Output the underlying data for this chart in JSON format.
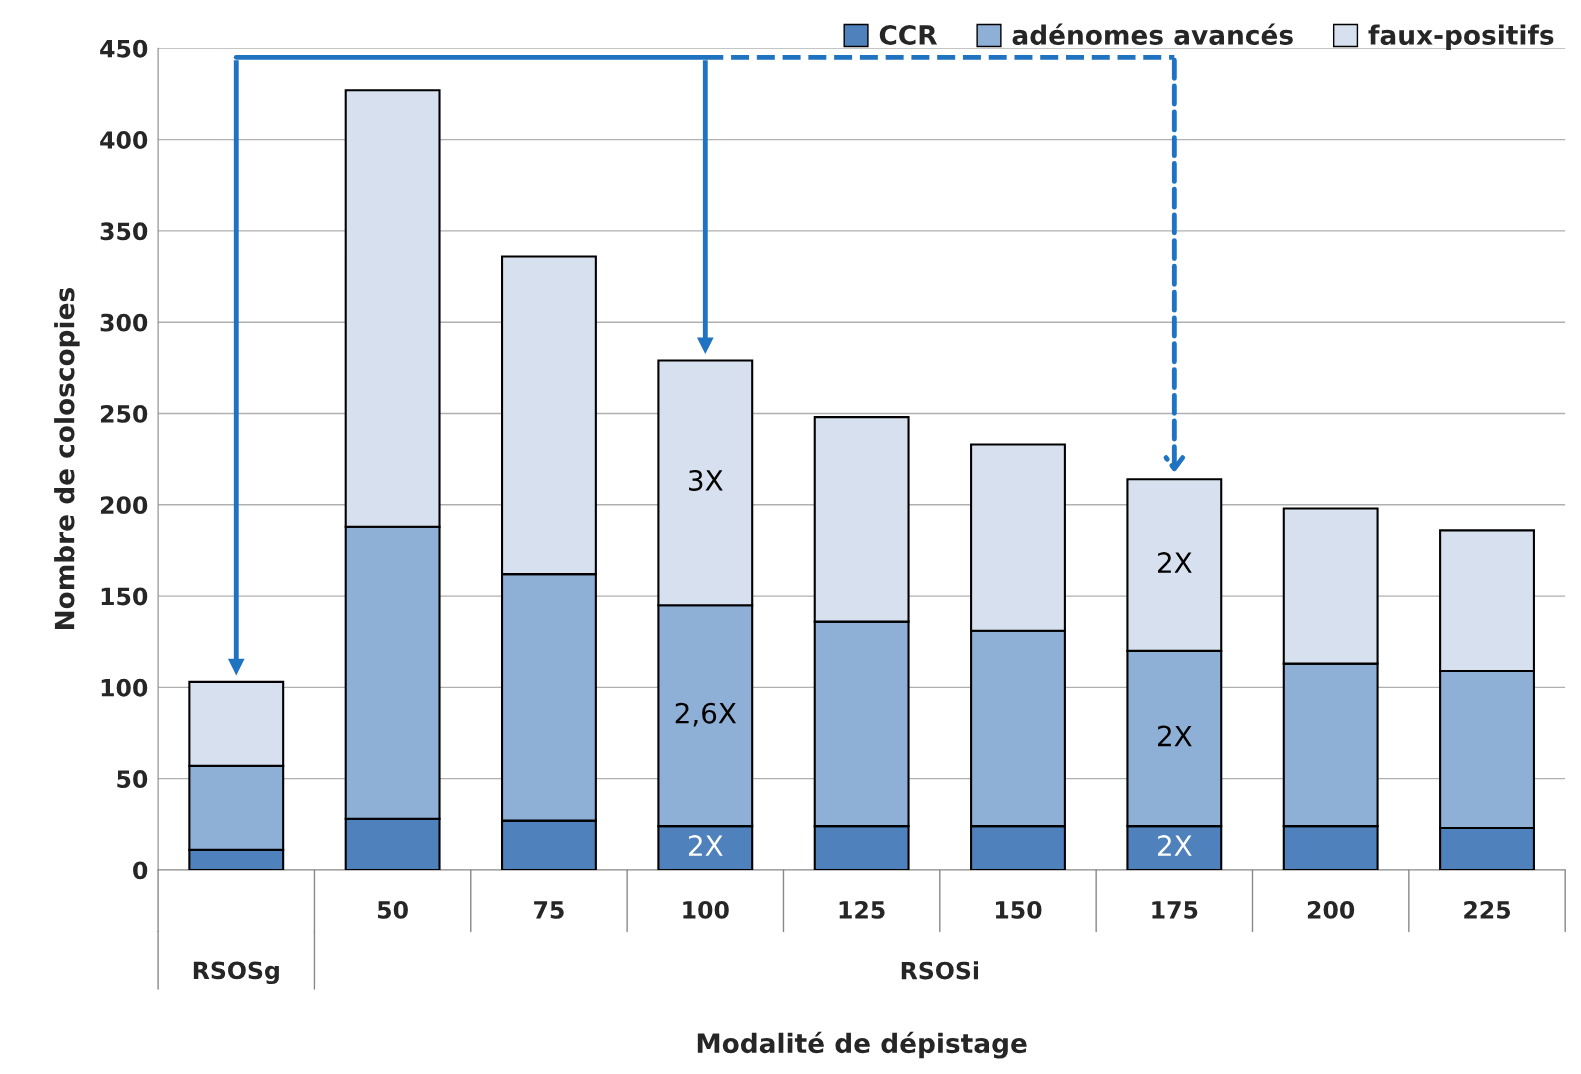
{
  "chart_data": {
    "type": "bar",
    "stacked": true,
    "xlabel": "Modalité de dépistage",
    "ylabel": "Nombre de coloscopies",
    "categories": [
      null,
      "50",
      "75",
      "100",
      "125",
      "150",
      "175",
      "200",
      "225"
    ],
    "series": [
      {
        "name": "CCR",
        "color": "#4f81bd",
        "values": [
          11,
          28,
          27,
          24,
          24,
          24,
          24,
          24,
          23
        ]
      },
      {
        "name": "adénomes avancés",
        "color": "#8eafd6",
        "values": [
          46,
          160,
          135,
          121,
          112,
          107,
          96,
          89,
          86
        ]
      },
      {
        "name": "faux-positifs",
        "color": "#d6e0ee",
        "values": [
          46,
          239,
          174,
          134,
          112,
          102,
          94,
          85,
          77
        ]
      }
    ],
    "ylim": [
      0,
      450
    ],
    "yticks": [
      0,
      50,
      100,
      150,
      200,
      250,
      300,
      350,
      400,
      450
    ],
    "grid": "y",
    "legend": "top right",
    "annotations": [
      "RSOSg",
      "RSOSi",
      "3X",
      "2,6X",
      "2X",
      "2X",
      "2X",
      "2X"
    ]
  }
}
